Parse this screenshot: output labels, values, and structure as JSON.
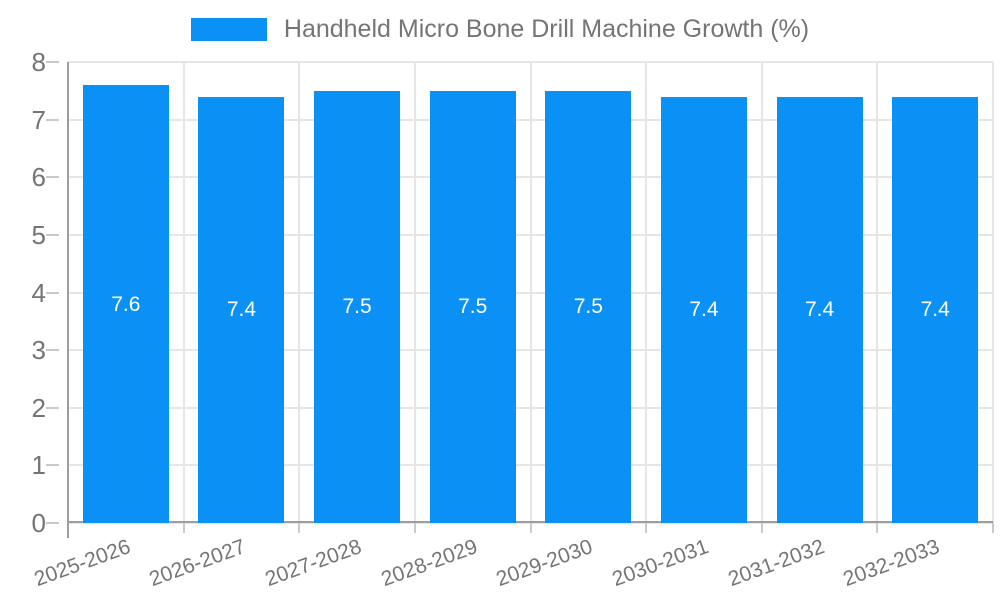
{
  "chart_data": {
    "type": "bar",
    "title": "Handheld Micro Bone Drill Machine Growth (%)",
    "categories": [
      "2025-2026",
      "2026-2027",
      "2027-2028",
      "2028-2029",
      "2029-2030",
      "2030-2031",
      "2031-2032",
      "2032-2033"
    ],
    "values": [
      7.6,
      7.4,
      7.5,
      7.5,
      7.5,
      7.4,
      7.4,
      7.4
    ],
    "value_labels": [
      "7.6",
      "7.4",
      "7.5",
      "7.5",
      "7.5",
      "7.4",
      "7.4",
      "7.4"
    ],
    "xlabel": "",
    "ylabel": "",
    "ylim": [
      0,
      8
    ],
    "yticks": [
      "0",
      "1",
      "2",
      "3",
      "4",
      "5",
      "6",
      "7",
      "8"
    ],
    "grid": true,
    "legend_position": "top"
  },
  "colors": {
    "bar": "#0b90f6",
    "value_label": "#ffffff",
    "axis": "#9e9e9e",
    "grid": "#e6e6e6",
    "tick": "#c9c9c9",
    "text": "#757575",
    "background": "#ffffff"
  }
}
